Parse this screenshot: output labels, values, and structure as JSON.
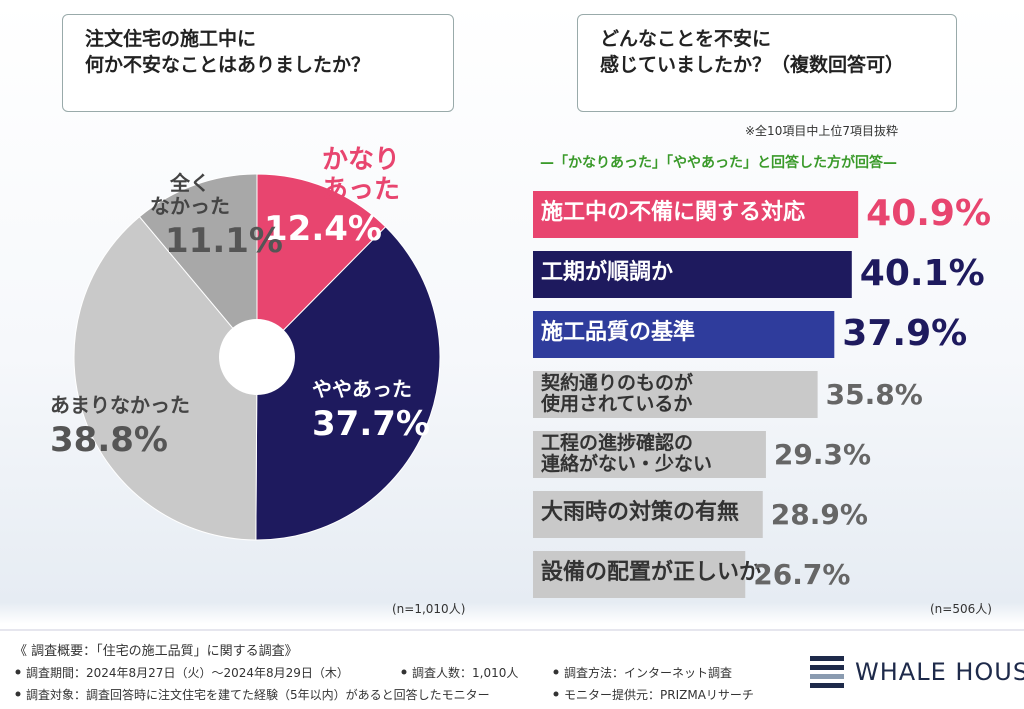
{
  "chart_data": [
    {
      "type": "pie",
      "title": "注文住宅の施工中に\n何か不安なことはありましたか？",
      "categories": [
        "かなり\nあった",
        "ややあった",
        "あまりなかった",
        "全く\nなかった"
      ],
      "values": [
        12.4,
        37.7,
        38.8,
        11.1
      ],
      "value_labels": [
        "12.4%",
        "37.7%",
        "38.8%",
        "11.1%"
      ],
      "colors": [
        "#e8456f",
        "#1e1a5e",
        "#c9c9c9",
        "#a8a8a8"
      ],
      "note": "(n=1,010人)"
    },
    {
      "type": "bar",
      "title": "どんなことを不安に\n感じていましたか？（複数回答可）",
      "annotation": "※全10項目中上位7項目抜粋",
      "subtitle": "—「かなりあった」「ややあった」と回答した方が回答—",
      "categories": [
        "施工中の不備に関する対応",
        "工期が順調か",
        "施工品質の基準",
        "契約通りのものが\n使用されているか",
        "工程の進捗確認の\n連絡がない・少ない",
        "大雨時の対策の有無",
        "設備の配置が正しいか"
      ],
      "values": [
        40.9,
        40.1,
        37.9,
        35.8,
        29.3,
        28.9,
        26.7
      ],
      "value_labels": [
        "40.9%",
        "40.1%",
        "37.9%",
        "35.8%",
        "29.3%",
        "28.9%",
        "26.7%"
      ],
      "colors": [
        "#e8456f",
        "#1e1a5e",
        "#2f3c9c",
        "#c9c9c9",
        "#c9c9c9",
        "#c9c9c9",
        "#c9c9c9"
      ],
      "label_colors": [
        "#e8456f",
        "#1e1a5e",
        "#1e1a5e",
        "#666666",
        "#666666",
        "#666666",
        "#666666"
      ],
      "note": "(n=506人)"
    }
  ],
  "footer": {
    "heading": "《 調査概要：「住宅の施工品質」に関する調査》",
    "items": [
      "調査期間：2024年8月27日（火）～2024年8月29日（木）",
      "調査人数：1,010人",
      "調査方法：インターネット調査",
      "調査対象：調査回答時に注文住宅を建てた経験（5年以内）があると回答したモニター",
      "モニター提供元：PRIZMAリサーチ"
    ],
    "logo": "WHALE HOUSE"
  }
}
